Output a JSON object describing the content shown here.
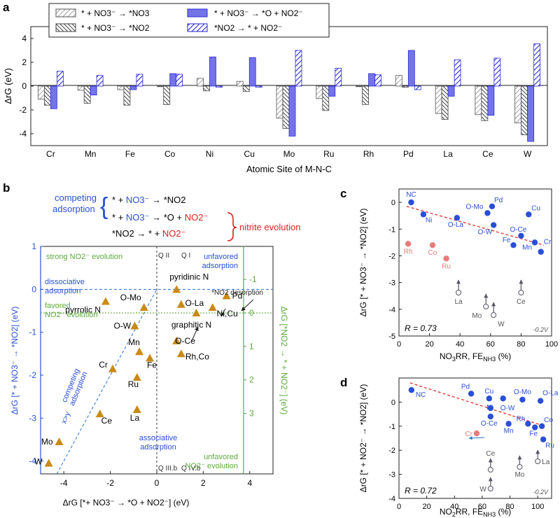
{
  "colors": {
    "blue": "#2a4fd6",
    "red": "#e02020",
    "green": "#5aaa3a",
    "salmon": "#e87c7c",
    "orange": "#c98a16",
    "gray": "#555555"
  },
  "panel_labels": {
    "a": "a",
    "b": "b",
    "c": "c",
    "d": "d"
  },
  "chart_data": [
    {
      "panel": "a",
      "type": "bar",
      "ylabel": "ΔrG (eV)",
      "xlabel": "Atomic Site of M-N-C",
      "ylim": [
        -5,
        5
      ],
      "yticks": [
        "-4",
        "-2",
        "0",
        "2",
        "4"
      ],
      "categories": [
        "Cr",
        "Mn",
        "Fe",
        "Co",
        "Ni",
        "Cu",
        "Mo",
        "Ru",
        "Rh",
        "Pd",
        "La",
        "Ce",
        "W"
      ],
      "series": [
        {
          "name": "* + NO3- → *NO3",
          "values": [
            -1.1,
            -0.35,
            -0.3,
            -0.05,
            0.65,
            0.4,
            -2.7,
            -1.05,
            -0.05,
            0.9,
            -2.3,
            -2.4,
            -3.1
          ]
        },
        {
          "name": "* + NO3- → *NO2",
          "values": [
            -1.6,
            -1.45,
            -1.6,
            -1.55,
            -0.4,
            -0.45,
            -3.55,
            -2.05,
            -1.55,
            -0.1,
            -2.8,
            -2.9,
            -4.1
          ]
        },
        {
          "name": "* + NO3- → *O + NO2-",
          "values": [
            -1.9,
            -0.75,
            -0.3,
            1.05,
            2.45,
            2.4,
            -4.2,
            -0.85,
            1.05,
            3.0,
            -0.85,
            -2.45,
            -4.65
          ]
        },
        {
          "name": "*NO2 → * + NO2-",
          "values": [
            1.25,
            0.9,
            1.0,
            1.0,
            -0.1,
            -0.1,
            3.0,
            1.5,
            0.95,
            -0.3,
            2.2,
            2.35,
            3.55
          ]
        }
      ],
      "legend": [
        "* + NO3⁻ → *NO3",
        "* + NO3⁻ → *NO2",
        "* + NO3⁻ → *O + NO2⁻",
        "*NO2 → * + NO2⁻"
      ]
    },
    {
      "panel": "b",
      "type": "scatter",
      "xlabel": "ΔrG [*+ NO3⁻ → *O + NO2⁻] (eV)",
      "ylabel": "ΔrG [* + NO3⁻ → *NO2] (eV)",
      "y2label": "ΔrG [*NO2 → * + NO2⁻] (eV)",
      "xlim": [
        -5,
        5
      ],
      "ylim": [
        -4.3,
        1
      ],
      "xticks": [
        "-4",
        "-2",
        "0",
        "2",
        "4"
      ],
      "yticks": [
        "1",
        "0",
        "-1",
        "-2",
        "-3",
        "-4"
      ],
      "y2ticks": [
        "-1",
        "0",
        "1",
        "2",
        "3"
      ],
      "points": [
        {
          "label": "pyridinic N",
          "x": 0.85,
          "y": 0.0
        },
        {
          "label": "graphitic N",
          "x": 1.05,
          "y": -0.35
        },
        {
          "label": "O-La",
          "x": 1.7,
          "y": -0.55
        },
        {
          "label": "Ni,Cu",
          "x": 2.4,
          "y": -0.42
        },
        {
          "label": "Pd",
          "x": 3.0,
          "y": -0.15
        },
        {
          "label": "O-Mo",
          "x": -0.55,
          "y": -0.42
        },
        {
          "label": "pyrrolic N",
          "x": -2.2,
          "y": -0.28
        },
        {
          "label": "O-W",
          "x": -0.95,
          "y": -0.85
        },
        {
          "label": "O-Ce",
          "x": 0.85,
          "y": -1.2
        },
        {
          "label": "Rh,Co",
          "x": 1.05,
          "y": -1.5
        },
        {
          "label": "Mn",
          "x": -0.75,
          "y": -1.45
        },
        {
          "label": "Fe",
          "x": -0.3,
          "y": -1.6
        },
        {
          "label": "Cr",
          "x": -1.9,
          "y": -1.85
        },
        {
          "label": "Ru",
          "x": -0.85,
          "y": -2.05
        },
        {
          "label": "La",
          "x": -0.85,
          "y": -2.8
        },
        {
          "label": "Ce",
          "x": -2.45,
          "y": -2.9
        },
        {
          "label": "Mo",
          "x": -4.2,
          "y": -3.55
        },
        {
          "label": "W",
          "x": -4.65,
          "y": -4.05
        }
      ],
      "annotations": {
        "q1": "Q I",
        "q2": "Q II",
        "q3b": "Q III.b",
        "q4b": "Q IV.b",
        "strong_evolution": "strong NO2⁻ evolution",
        "unfavored_adsorption": "unfavored adsorption",
        "dissociative": "dissociative adsorption",
        "favored_evolution": "favored NO2⁻ evolution",
        "desorption": "*NO2 desorption",
        "competing_diag": "competing adsorption",
        "xy": "x>y",
        "associative": "associative adsorption",
        "unfavored_evolution": "unfavored NO2⁻ evolution"
      },
      "scheme": {
        "competing": "competing adsorption",
        "r1_a": "* + ",
        "r1_b": "NO3⁻",
        "r1_c": " → *NO2",
        "r2_a": "* + ",
        "r2_b": "NO3⁻",
        "r2_c": " → *O + ",
        "r2_d": "NO2⁻",
        "r3_a": "*NO2 → ",
        "r3_b": " * + ",
        "r3_c": "NO2⁻",
        "nitrite": "nitrite evolution"
      }
    },
    {
      "panel": "c",
      "type": "scatter",
      "xlabel": "NO3RR, FE_NH3 (%)",
      "ylabel": "ΔrG [* + NO3⁻ → *NO2] (eV)",
      "xlim": [
        0,
        100
      ],
      "ylim": [
        -5,
        0.5
      ],
      "xticks": [
        "0",
        "20",
        "40",
        "60",
        "80",
        "100"
      ],
      "yticks": [
        "0",
        "-1",
        "-2",
        "-3",
        "-4",
        "-5"
      ],
      "r_value": "R = 0.73",
      "potential": "-0.2V",
      "blue_points": [
        {
          "label": "NC",
          "x": 8,
          "y": 0.0
        },
        {
          "label": "Ni",
          "x": 16,
          "y": -0.45
        },
        {
          "label": "O-La",
          "x": 38,
          "y": -0.58
        },
        {
          "label": "O-Mo",
          "x": 58,
          "y": -0.4
        },
        {
          "label": "Pd",
          "x": 61,
          "y": -0.15
        },
        {
          "label": "O-W",
          "x": 62,
          "y": -0.85
        },
        {
          "label": "Cu",
          "x": 85,
          "y": -0.45
        },
        {
          "label": "O-Ce",
          "x": 80,
          "y": -1.25
        },
        {
          "label": "Fe",
          "x": 75,
          "y": -1.6
        },
        {
          "label": "Mn",
          "x": 89,
          "y": -1.5
        },
        {
          "label": "Cr",
          "x": 93,
          "y": -1.85
        }
      ],
      "red_points": [
        {
          "label": "Rh",
          "x": 6,
          "y": -1.55
        },
        {
          "label": "Co",
          "x": 22,
          "y": -1.6
        },
        {
          "label": "Ru",
          "x": 31,
          "y": -2.1
        }
      ],
      "offscale": [
        {
          "label": "La",
          "x": 39
        },
        {
          "label": "Mo",
          "x": 57
        },
        {
          "label": "W",
          "x": 62
        },
        {
          "label": "Ce",
          "x": 80
        }
      ],
      "fit": {
        "x": [
          5,
          95
        ],
        "y": [
          -0.15,
          -1.6
        ]
      }
    },
    {
      "panel": "d",
      "type": "scatter",
      "xlabel": "NO2RR, FE_NH3 (%)",
      "ylabel": "ΔrG [* + NO2⁻ → *NO2] (eV)",
      "xlim": [
        0,
        110
      ],
      "ylim": [
        -4,
        1
      ],
      "xticks": [
        "0",
        "20",
        "40",
        "60",
        "80",
        "100"
      ],
      "yticks": [
        "0",
        "-1",
        "-2",
        "-3",
        "-4"
      ],
      "r_value": "R = 0.72",
      "potential": "-0.2V",
      "blue_points": [
        {
          "label": "NC",
          "x": 9,
          "y": 0.5
        },
        {
          "label": "Pd",
          "x": 52,
          "y": 0.35
        },
        {
          "label": "Cu",
          "x": 65,
          "y": 0.15
        },
        {
          "label": "Ni",
          "x": 75,
          "y": 0.15
        },
        {
          "label": "O-Mo",
          "x": 89,
          "y": 0.1
        },
        {
          "label": "O-La",
          "x": 102,
          "y": 0.05
        },
        {
          "label": "O-W",
          "x": 66,
          "y": -0.25
        },
        {
          "label": "O-Ce",
          "x": 66,
          "y": -0.6
        },
        {
          "label": "Mn",
          "x": 79,
          "y": -0.9
        },
        {
          "label": "Rh",
          "x": 93,
          "y": -0.9
        },
        {
          "label": "Fe",
          "x": 98,
          "y": -1.05
        },
        {
          "label": "Co",
          "x": 103,
          "y": -1.0
        },
        {
          "label": "Ru",
          "x": 104,
          "y": -1.55
        }
      ],
      "red_points": [
        {
          "label": "Cr",
          "x": 56,
          "y": -1.3
        }
      ],
      "offscale": [
        {
          "label": "Ce",
          "x": 66
        },
        {
          "label": "W",
          "x": 66
        },
        {
          "label": "Mo",
          "x": 87
        },
        {
          "label": "La",
          "x": 100
        }
      ],
      "fit": {
        "x": [
          8,
          105
        ],
        "y": [
          0.8,
          -1.0
        ]
      }
    }
  ]
}
